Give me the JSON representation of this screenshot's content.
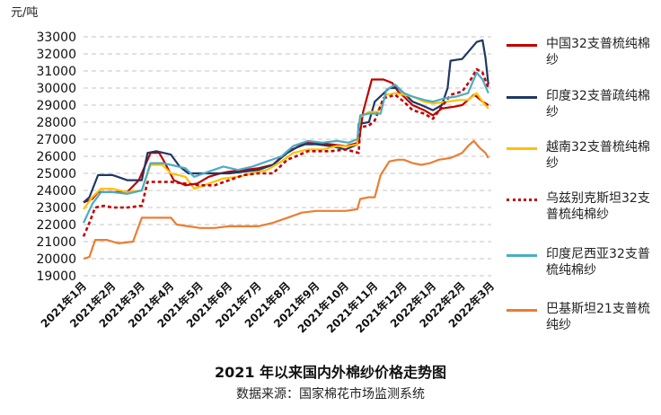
{
  "unit_label": "元/吨",
  "title": "2021 年以来国内外棉纱价格走势图",
  "source": "数据来源：国家棉花市场监测系统",
  "chart_data": {
    "type": "line",
    "title": "2021 年以来国内外棉纱价格走势图",
    "ylabel": "元/吨",
    "xlabel": "",
    "ylim": [
      19000,
      33000
    ],
    "yticks": [
      19000,
      20000,
      21000,
      22000,
      23000,
      24000,
      25000,
      26000,
      27000,
      28000,
      29000,
      30000,
      31000,
      32000,
      33000
    ],
    "xticks": [
      "2021年1月",
      "2021年2月",
      "2021年3月",
      "2021年4月",
      "2021年5月",
      "2021年6月",
      "2021年7月",
      "2021年8月",
      "2021年9月",
      "2021年10月",
      "2021年11月",
      "2021年12月",
      "2022年1月",
      "2022年2月",
      "2022年3月"
    ],
    "grid": true,
    "legend_position": "right",
    "series": [
      {
        "name": "中国32支普梳纯棉纱",
        "color": "#c00000",
        "style": "solid",
        "points": [
          [
            0,
            23300
          ],
          [
            0.3,
            23500
          ],
          [
            0.5,
            23900
          ],
          [
            1,
            23900
          ],
          [
            1.5,
            23900
          ],
          [
            1.9,
            24600
          ],
          [
            2.3,
            26200
          ],
          [
            2.6,
            26200
          ],
          [
            2.8,
            25600
          ],
          [
            3.1,
            24600
          ],
          [
            3.5,
            24300
          ],
          [
            3.9,
            24400
          ],
          [
            4.3,
            24800
          ],
          [
            4.7,
            25000
          ],
          [
            5,
            25100
          ],
          [
            5.5,
            25200
          ],
          [
            6,
            25300
          ],
          [
            6.5,
            25500
          ],
          [
            7,
            26300
          ],
          [
            7.3,
            26500
          ],
          [
            7.6,
            26800
          ],
          [
            8,
            26800
          ],
          [
            8.5,
            26700
          ],
          [
            9,
            26600
          ],
          [
            9.45,
            26800
          ],
          [
            9.6,
            28600
          ],
          [
            9.9,
            30500
          ],
          [
            10.3,
            30500
          ],
          [
            10.6,
            30300
          ],
          [
            10.8,
            29800
          ],
          [
            11,
            29500
          ],
          [
            11.3,
            29000
          ],
          [
            11.7,
            28700
          ],
          [
            12,
            28400
          ],
          [
            12.3,
            28800
          ],
          [
            12.7,
            28900
          ],
          [
            13,
            29000
          ],
          [
            13.2,
            29300
          ],
          [
            13.4,
            29600
          ],
          [
            13.5,
            29500
          ],
          [
            13.7,
            29200
          ],
          [
            13.9,
            29000
          ]
        ]
      },
      {
        "name": "印度32支普疏纯棉纱",
        "color": "#1f3864",
        "style": "solid",
        "points": [
          [
            0,
            23300
          ],
          [
            0.2,
            23600
          ],
          [
            0.5,
            24900
          ],
          [
            1,
            24900
          ],
          [
            1.5,
            24600
          ],
          [
            2,
            24600
          ],
          [
            2.2,
            26200
          ],
          [
            2.5,
            26300
          ],
          [
            3,
            26100
          ],
          [
            3.3,
            25400
          ],
          [
            3.6,
            25000
          ],
          [
            4,
            25000
          ],
          [
            4.5,
            25000
          ],
          [
            5,
            25000
          ],
          [
            5.5,
            25100
          ],
          [
            6,
            25200
          ],
          [
            6.5,
            25500
          ],
          [
            7,
            26200
          ],
          [
            7.3,
            26500
          ],
          [
            7.6,
            26700
          ],
          [
            8,
            26700
          ],
          [
            8.5,
            26600
          ],
          [
            9,
            26400
          ],
          [
            9.4,
            26700
          ],
          [
            9.45,
            27900
          ],
          [
            9.8,
            28000
          ],
          [
            10,
            29200
          ],
          [
            10.5,
            30000
          ],
          [
            10.8,
            30000
          ],
          [
            11,
            29700
          ],
          [
            11.3,
            29200
          ],
          [
            11.6,
            29000
          ],
          [
            12,
            28700
          ],
          [
            12.3,
            29000
          ],
          [
            12.5,
            30000
          ],
          [
            12.6,
            31600
          ],
          [
            13,
            31700
          ],
          [
            13.3,
            32300
          ],
          [
            13.5,
            32700
          ],
          [
            13.7,
            32800
          ],
          [
            13.8,
            31800
          ],
          [
            13.9,
            30200
          ]
        ]
      },
      {
        "name": "越南32支普梳纯棉纱",
        "color": "#ffc000",
        "style": "solid",
        "points": [
          [
            0,
            22900
          ],
          [
            0.3,
            23600
          ],
          [
            0.6,
            24100
          ],
          [
            1,
            24100
          ],
          [
            1.5,
            23900
          ],
          [
            2,
            24000
          ],
          [
            2.3,
            25500
          ],
          [
            2.7,
            25500
          ],
          [
            3,
            25000
          ],
          [
            3.5,
            24800
          ],
          [
            3.8,
            24100
          ],
          [
            4.3,
            24400
          ],
          [
            4.8,
            24700
          ],
          [
            5.3,
            24800
          ],
          [
            5.8,
            25000
          ],
          [
            6.3,
            25200
          ],
          [
            6.8,
            25700
          ],
          [
            7.2,
            26200
          ],
          [
            7.7,
            26400
          ],
          [
            8.2,
            26400
          ],
          [
            8.7,
            26600
          ],
          [
            9.1,
            26600
          ],
          [
            9.4,
            26700
          ],
          [
            9.5,
            28300
          ],
          [
            9.8,
            28600
          ],
          [
            10.1,
            28600
          ],
          [
            10.4,
            29600
          ],
          [
            10.7,
            29700
          ],
          [
            11,
            29600
          ],
          [
            11.3,
            29500
          ],
          [
            11.7,
            29200
          ],
          [
            12,
            29100
          ],
          [
            12.5,
            29200
          ],
          [
            12.9,
            29300
          ],
          [
            13.2,
            29300
          ],
          [
            13.5,
            29700
          ],
          [
            13.7,
            29200
          ],
          [
            13.9,
            28800
          ]
        ]
      },
      {
        "name": "乌兹别克斯坦32支普梳纯棉纱",
        "color": "#c00000",
        "style": "dashed",
        "points": [
          [
            0,
            21300
          ],
          [
            0.2,
            22100
          ],
          [
            0.4,
            23000
          ],
          [
            0.7,
            23100
          ],
          [
            1,
            23000
          ],
          [
            1.5,
            23000
          ],
          [
            2,
            23100
          ],
          [
            2.2,
            24500
          ],
          [
            2.6,
            24500
          ],
          [
            3,
            24500
          ],
          [
            3.5,
            24400
          ],
          [
            4,
            24300
          ],
          [
            4.5,
            24300
          ],
          [
            5,
            24600
          ],
          [
            5.5,
            24900
          ],
          [
            6,
            25000
          ],
          [
            6.5,
            25000
          ],
          [
            7,
            25800
          ],
          [
            7.3,
            26000
          ],
          [
            7.7,
            26300
          ],
          [
            8,
            26300
          ],
          [
            8.5,
            26300
          ],
          [
            9,
            26400
          ],
          [
            9.45,
            26200
          ],
          [
            9.5,
            27700
          ],
          [
            9.8,
            27800
          ],
          [
            10,
            28100
          ],
          [
            10.3,
            29400
          ],
          [
            10.7,
            29600
          ],
          [
            11,
            29200
          ],
          [
            11.3,
            28700
          ],
          [
            11.7,
            28500
          ],
          [
            12,
            28200
          ],
          [
            12.3,
            28900
          ],
          [
            12.6,
            29600
          ],
          [
            13,
            29800
          ],
          [
            13.3,
            30500
          ],
          [
            13.5,
            31100
          ],
          [
            13.7,
            30900
          ],
          [
            13.9,
            30000
          ]
        ]
      },
      {
        "name": "印度尼西亚32支普梳纯棉纱",
        "color": "#4bacc6",
        "style": "solid",
        "points": [
          [
            0,
            22100
          ],
          [
            0.3,
            23200
          ],
          [
            0.6,
            23900
          ],
          [
            1,
            23900
          ],
          [
            1.5,
            23800
          ],
          [
            2,
            24000
          ],
          [
            2.3,
            25600
          ],
          [
            2.7,
            25600
          ],
          [
            3,
            25500
          ],
          [
            3.5,
            25300
          ],
          [
            3.8,
            24800
          ],
          [
            4.3,
            25100
          ],
          [
            4.8,
            25400
          ],
          [
            5.3,
            25200
          ],
          [
            5.8,
            25400
          ],
          [
            6.3,
            25700
          ],
          [
            6.8,
            26000
          ],
          [
            7.2,
            26600
          ],
          [
            7.7,
            26900
          ],
          [
            8.2,
            26800
          ],
          [
            8.7,
            26900
          ],
          [
            9.1,
            26800
          ],
          [
            9.4,
            27000
          ],
          [
            9.5,
            28400
          ],
          [
            9.8,
            28500
          ],
          [
            10.2,
            28500
          ],
          [
            10.4,
            29900
          ],
          [
            10.7,
            30200
          ],
          [
            11,
            29700
          ],
          [
            11.3,
            29500
          ],
          [
            11.7,
            29300
          ],
          [
            12,
            29200
          ],
          [
            12.4,
            29400
          ],
          [
            12.8,
            29500
          ],
          [
            13.2,
            29700
          ],
          [
            13.5,
            30900
          ],
          [
            13.7,
            30500
          ],
          [
            13.9,
            29700
          ]
        ]
      },
      {
        "name": "巴基斯坦21支普梳纯纱",
        "color": "#ed7d31",
        "style": "solid",
        "points": [
          [
            0,
            20000
          ],
          [
            0.2,
            20100
          ],
          [
            0.4,
            21100
          ],
          [
            0.8,
            21100
          ],
          [
            1.2,
            20900
          ],
          [
            1.7,
            21000
          ],
          [
            2,
            22400
          ],
          [
            2.5,
            22400
          ],
          [
            3,
            22400
          ],
          [
            3.2,
            22000
          ],
          [
            3.6,
            21900
          ],
          [
            4,
            21800
          ],
          [
            4.5,
            21800
          ],
          [
            5,
            21900
          ],
          [
            5.5,
            21900
          ],
          [
            6,
            21900
          ],
          [
            6.5,
            22100
          ],
          [
            7,
            22400
          ],
          [
            7.5,
            22700
          ],
          [
            8,
            22800
          ],
          [
            8.5,
            22800
          ],
          [
            9,
            22800
          ],
          [
            9.4,
            22900
          ],
          [
            9.5,
            23500
          ],
          [
            9.8,
            23600
          ],
          [
            10,
            23600
          ],
          [
            10.2,
            24900
          ],
          [
            10.5,
            25700
          ],
          [
            10.8,
            25800
          ],
          [
            11,
            25800
          ],
          [
            11.3,
            25600
          ],
          [
            11.6,
            25500
          ],
          [
            11.9,
            25600
          ],
          [
            12.2,
            25800
          ],
          [
            12.6,
            25900
          ],
          [
            13,
            26200
          ],
          [
            13.2,
            26600
          ],
          [
            13.4,
            26900
          ],
          [
            13.6,
            26500
          ],
          [
            13.8,
            26200
          ],
          [
            13.9,
            25900
          ]
        ]
      }
    ]
  }
}
